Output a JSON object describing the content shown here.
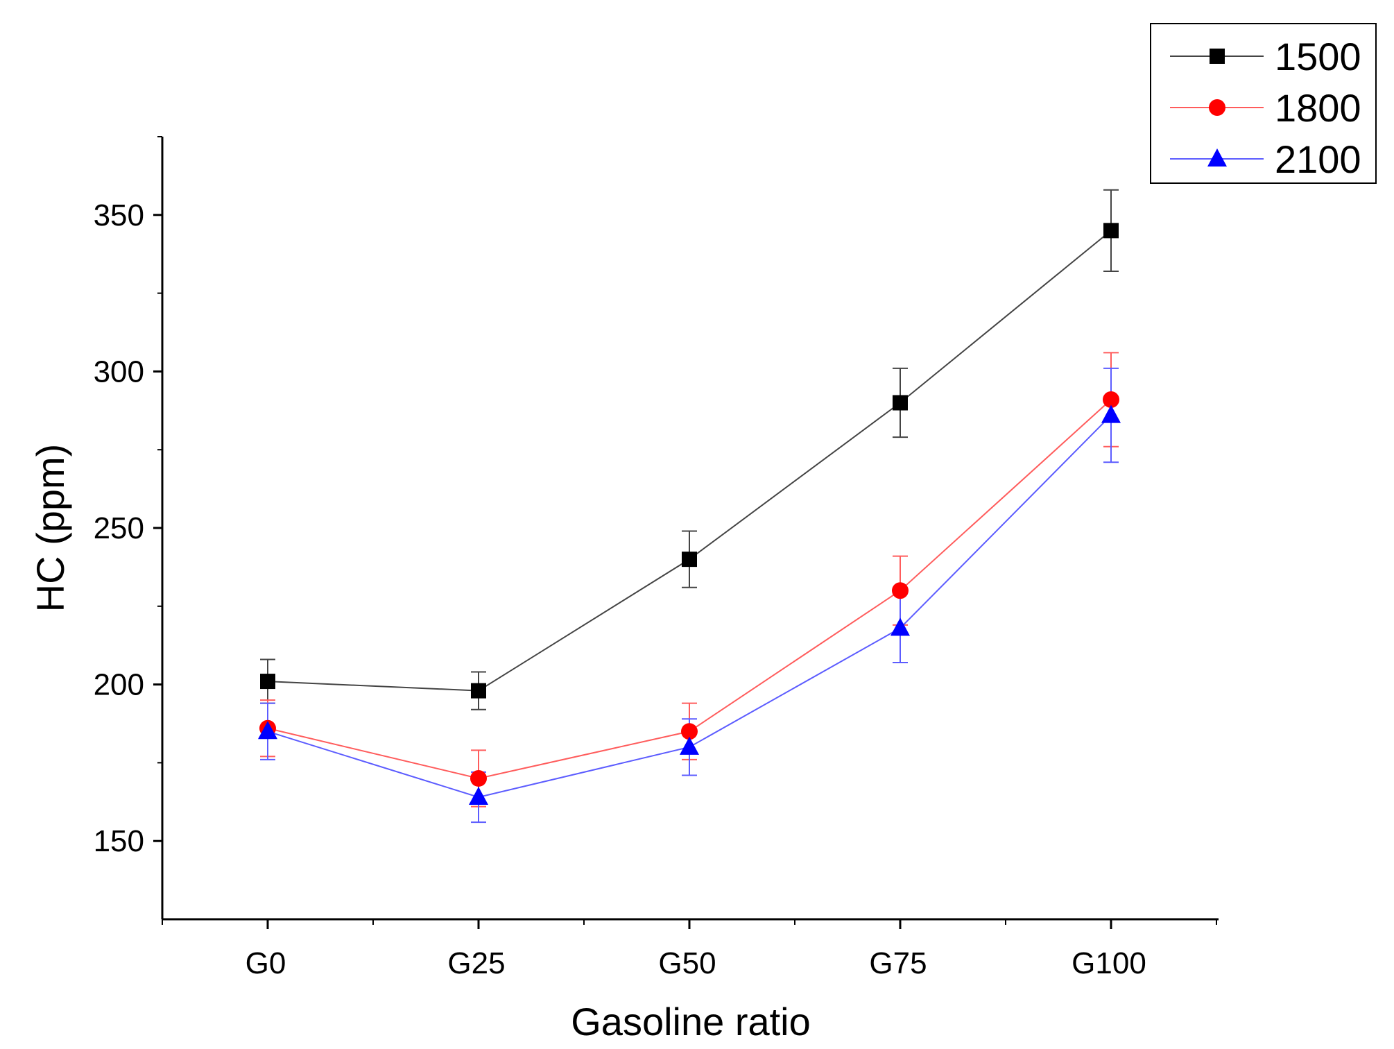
{
  "chart_data": {
    "type": "line",
    "title": "",
    "xlabel": "Gasoline ratio",
    "ylabel": "HC (ppm)",
    "categories": [
      "G0",
      "G25",
      "G50",
      "G75",
      "G100"
    ],
    "ylim": [
      125,
      375
    ],
    "y_ticks": [
      150,
      200,
      250,
      300,
      350
    ],
    "y_tick_labels": [
      "150",
      "200",
      "250",
      "300",
      "350"
    ],
    "grid": false,
    "legend_position": "top-right",
    "series": [
      {
        "name": "1500",
        "color": "#000000",
        "marker": "square",
        "values": [
          201,
          198,
          240,
          290,
          345
        ],
        "errors": [
          7,
          6,
          9,
          11,
          13
        ]
      },
      {
        "name": "1800",
        "color": "#ff0000",
        "marker": "circle",
        "values": [
          186,
          170,
          185,
          230,
          291
        ],
        "errors": [
          9,
          9,
          9,
          11,
          15
        ]
      },
      {
        "name": "2100",
        "color": "#0000ff",
        "marker": "triangle",
        "values": [
          185,
          164,
          180,
          218,
          286
        ],
        "errors": [
          9,
          8,
          9,
          11,
          15
        ]
      }
    ]
  }
}
